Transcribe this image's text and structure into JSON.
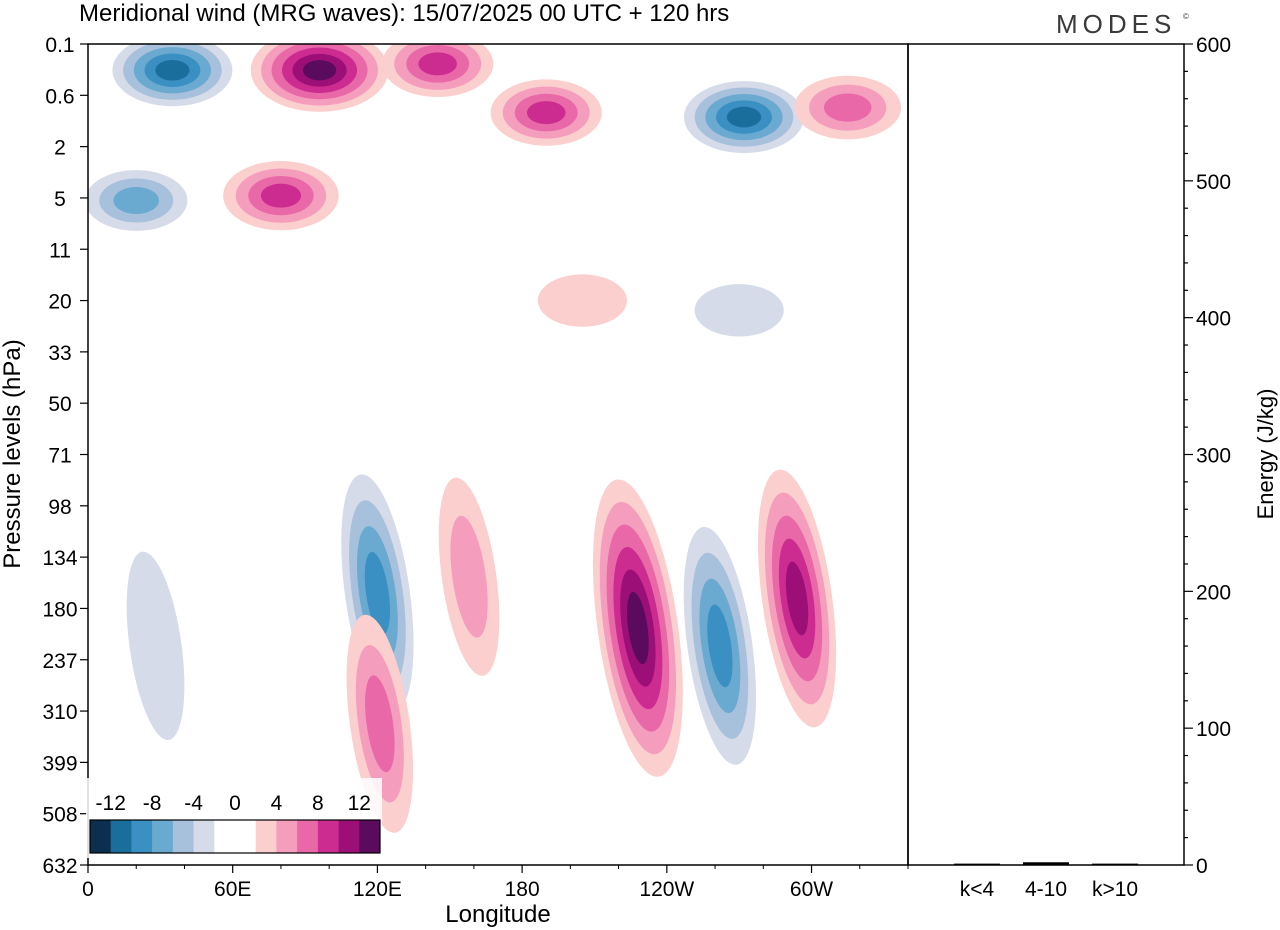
{
  "figure": {
    "title": "Meridional wind (MRG waves):  15/07/2025  00 UTC  + 120 hrs",
    "logo": "MODES",
    "logo_mark": "©"
  },
  "chart_data": [
    {
      "type": "heatmap",
      "title": "Meridional wind (MRG waves):  15/07/2025  00 UTC  + 120 hrs",
      "xlabel": "Longitude",
      "ylabel": "Pressure levels (hPa)",
      "x_tick_labels": [
        "0",
        "60E",
        "120E",
        "180",
        "120W",
        "60W"
      ],
      "x_tick_values_deg_east": [
        0,
        60,
        120,
        180,
        240,
        300
      ],
      "xlim_deg_east": [
        0,
        340
      ],
      "y_tick_labels": [
        "0.1",
        "0.6",
        "2",
        "5",
        "11",
        "20",
        "33",
        "50",
        "71",
        "98",
        "134",
        "180",
        "237",
        "310",
        "399",
        "508",
        "632"
      ],
      "colorbar": {
        "labels": [
          "-12",
          "-8",
          "-4",
          "0",
          "4",
          "8",
          "12"
        ],
        "colors": [
          "#0d2f4f",
          "#1a6e9c",
          "#3a8fc3",
          "#6aa9d0",
          "#a7c0dc",
          "#d6dbea",
          "#ffffff",
          "#ffffff",
          "#fbcfce",
          "#f59dbd",
          "#e868a8",
          "#cc2b90",
          "#9b0f77",
          "#5a0b5e"
        ]
      },
      "features": [
        {
          "sign": "positive",
          "lon": 228,
          "level_hPa": 200,
          "peak": 14
        },
        {
          "sign": "negative",
          "lon": 262,
          "level_hPa": 220,
          "peak": -8
        },
        {
          "sign": "positive",
          "lon": 294,
          "level_hPa": 170,
          "peak": 10
        },
        {
          "sign": "negative",
          "lon": 120,
          "level_hPa": 165,
          "peak": -8
        },
        {
          "sign": "positive",
          "lon": 121,
          "level_hPa": 330,
          "peak": 6
        },
        {
          "sign": "positive",
          "lon": 158,
          "level_hPa": 150,
          "peak": 4
        },
        {
          "sign": "negative",
          "lon": 28,
          "level_hPa": 220,
          "peak": -3
        },
        {
          "sign": "positive",
          "lon": 96,
          "level_hPa": 0.25,
          "peak": 14
        },
        {
          "sign": "negative",
          "lon": 35,
          "level_hPa": 0.25,
          "peak": -10
        },
        {
          "sign": "positive",
          "lon": 145,
          "level_hPa": 0.2,
          "peak": 8
        },
        {
          "sign": "negative",
          "lon": 272,
          "level_hPa": 1.0,
          "peak": -10
        },
        {
          "sign": "positive",
          "lon": 80,
          "level_hPa": 4.8,
          "peak": 9
        },
        {
          "sign": "negative",
          "lon": 20,
          "level_hPa": 5.2,
          "peak": -6
        },
        {
          "sign": "positive",
          "lon": 190,
          "level_hPa": 0.9,
          "peak": 8
        },
        {
          "sign": "positive",
          "lon": 315,
          "level_hPa": 0.8,
          "peak": 7
        },
        {
          "sign": "positive",
          "lon": 205,
          "level_hPa": 20,
          "peak": 3
        },
        {
          "sign": "negative",
          "lon": 270,
          "level_hPa": 22,
          "peak": -3
        }
      ]
    },
    {
      "type": "bar",
      "categories": [
        "k<4",
        "4-10",
        "k>10"
      ],
      "values": [
        1,
        2,
        1
      ],
      "ylabel": "Energy (J/kg)",
      "ylim": [
        0,
        600
      ],
      "ytick_labels": [
        "0",
        "100",
        "200",
        "300",
        "400",
        "500",
        "600"
      ],
      "ytick_values": [
        0,
        100,
        200,
        300,
        400,
        500,
        600
      ]
    }
  ]
}
